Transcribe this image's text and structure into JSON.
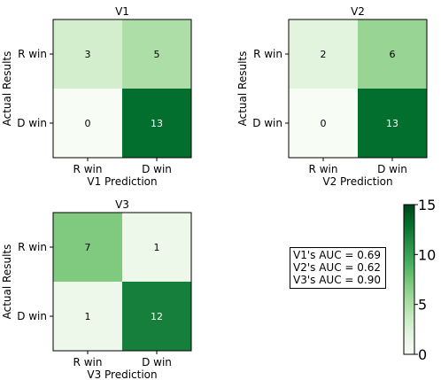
{
  "colors": {
    "colormap": "Greens",
    "cmap_stops": [
      "#f7fcf5",
      "#e5f5e0",
      "#c7e9c0",
      "#a1d99b",
      "#74c476",
      "#41ab5d",
      "#238b45",
      "#006d2c",
      "#00441b"
    ],
    "text_light": "#ffffff",
    "text_dark": "#000000"
  },
  "chart_data": [
    {
      "type": "heatmap",
      "title": "V1",
      "xlabel": "V1 Prediction",
      "ylabel": "Actual Results",
      "xticklabels": [
        "R win",
        "D win"
      ],
      "yticklabels": [
        "R win",
        "D win"
      ],
      "matrix": [
        [
          3,
          5
        ],
        [
          0,
          13
        ]
      ],
      "vmin": 0,
      "vmax": 15
    },
    {
      "type": "heatmap",
      "title": "V2",
      "xlabel": "V2 Prediction",
      "ylabel": "Actual Results",
      "xticklabels": [
        "R win",
        "D win"
      ],
      "yticklabels": [
        "R win",
        "D win"
      ],
      "matrix": [
        [
          2,
          6
        ],
        [
          0,
          13
        ]
      ],
      "vmin": 0,
      "vmax": 15
    },
    {
      "type": "heatmap",
      "title": "V3",
      "xlabel": "V3 Prediction",
      "ylabel": "Actual Results",
      "xticklabels": [
        "R win",
        "D win"
      ],
      "yticklabels": [
        "R win",
        "D win"
      ],
      "matrix": [
        [
          7,
          1
        ],
        [
          1,
          12
        ]
      ],
      "vmin": 0,
      "vmax": 15
    }
  ],
  "colorbar": {
    "ticks": [
      0,
      5,
      10,
      15
    ],
    "vmin": 0,
    "vmax": 15
  },
  "auc_box": {
    "lines": [
      "V1's AUC = 0.69",
      "V2's AUC = 0.62",
      "V3's AUC = 0.90"
    ]
  }
}
